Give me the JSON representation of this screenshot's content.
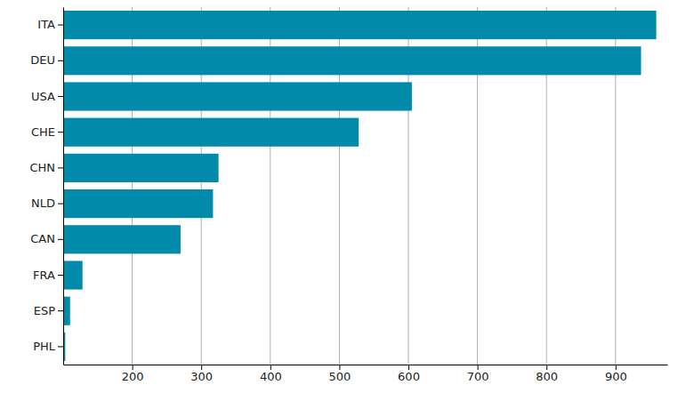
{
  "chart_data": {
    "type": "bar",
    "orientation": "horizontal",
    "categories": [
      "ITA",
      "DEU",
      "USA",
      "CHE",
      "CHN",
      "NLD",
      "CAN",
      "FRA",
      "ESP",
      "PHL"
    ],
    "values": [
      959,
      937,
      605,
      528,
      325,
      317,
      270,
      128,
      110,
      103
    ],
    "color": "#028aab",
    "xlim": [
      100,
      975
    ],
    "xticks": [
      200,
      300,
      400,
      500,
      600,
      700,
      800,
      900
    ],
    "grid": true
  }
}
